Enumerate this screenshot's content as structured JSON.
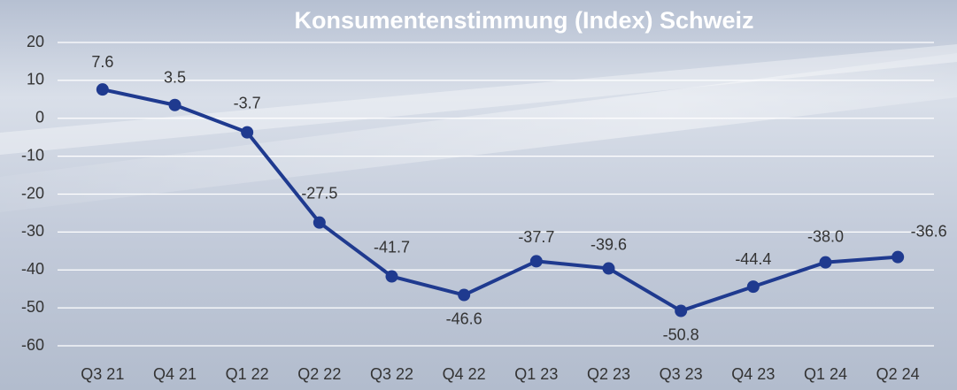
{
  "chart_data": {
    "type": "line",
    "title": "Konsumentenstimmung (Index) Schweiz",
    "categories": [
      "Q3 21",
      "Q4 21",
      "Q1 22",
      "Q2 22",
      "Q3 22",
      "Q4 22",
      "Q1 23",
      "Q2 23",
      "Q3 23",
      "Q4 23",
      "Q1 24",
      "Q2 24"
    ],
    "series": [
      {
        "name": "Konsumentenstimmung",
        "color": "#1f3a8f",
        "values": [
          7.6,
          3.5,
          -3.7,
          -27.5,
          -41.7,
          -46.6,
          -37.7,
          -39.6,
          -50.8,
          -44.4,
          -38.0,
          -36.6
        ],
        "value_labels": [
          "7.6",
          "3.5",
          "-3.7",
          "-27.5",
          "-41.7",
          "-46.6",
          "-37.7",
          "-39.6",
          "-50.8",
          "-44.4",
          "-38.0",
          "-36.6"
        ]
      }
    ],
    "ylim": [
      -60,
      20
    ],
    "yticks": [
      -60,
      -50,
      -40,
      -30,
      -20,
      -10,
      0,
      10,
      20
    ],
    "grid": true
  }
}
